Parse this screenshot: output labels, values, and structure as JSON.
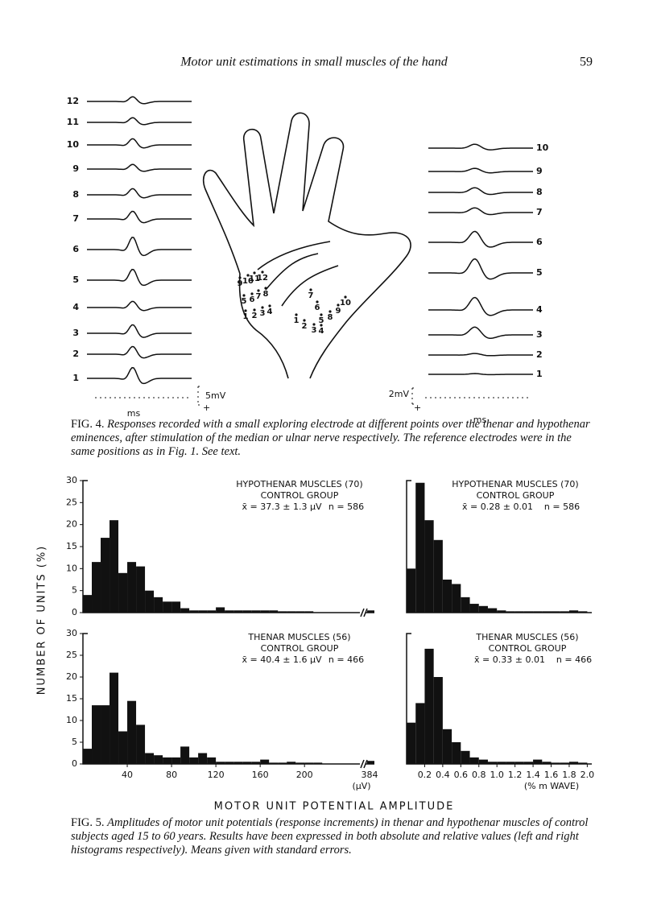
{
  "header": {
    "title": "Motor unit estimations in small muscles of the hand",
    "page": "59"
  },
  "fig4": {
    "left_trace_labels": [
      "1",
      "2",
      "3",
      "4",
      "5",
      "6",
      "7",
      "8",
      "9",
      "10",
      "11",
      "12"
    ],
    "right_trace_labels": [
      "1",
      "2",
      "3",
      "4",
      "5",
      "6",
      "7",
      "8",
      "9",
      "10"
    ],
    "hand_points_left": [
      "1",
      "2",
      "3",
      "4",
      "5",
      "6",
      "7",
      "8",
      "9",
      "10",
      "11",
      "12"
    ],
    "hand_points_right": [
      "1",
      "2",
      "3",
      "4",
      "5",
      "6",
      "7",
      "8",
      "9",
      "10"
    ],
    "scale_left": {
      "amplitude": "5mV",
      "time": "ms",
      "polarity": "+"
    },
    "scale_right": {
      "amplitude": "2mV",
      "time": "ms",
      "polarity": "+"
    },
    "caption": {
      "label": "FIG. 4.",
      "text": "Responses recorded with a small exploring electrode at different points over the thenar and hypothenar eminences, after stimulation of the median or ulnar nerve respectively. The reference electrodes were in the same positions as in Fig. 1. See text."
    }
  },
  "fig5": {
    "y_label": "NUMBER OF UNITS (%)",
    "x_label": "MOTOR UNIT POTENTIAL AMPLITUDE",
    "caption": {
      "label": "FIG. 5.",
      "text": "Amplitudes of motor unit potentials (response increments) in thenar and hypothenar muscles of control subjects aged 15 to 60 years. Results have been expressed in both absolute and relative values (left and right histograms respectively). Means given with standard errors."
    }
  },
  "chart_data": [
    {
      "type": "histogram",
      "color": "#111111",
      "annotations": [
        "HYPOTHENAR MUSCLES (70)",
        "CONTROL GROUP",
        "x̄ = 37.3 ± 1.3 µV",
        "n = 586"
      ],
      "bins": [
        0,
        8,
        16,
        24,
        32,
        40,
        48,
        56,
        64,
        72,
        80,
        88,
        96,
        104,
        112,
        120,
        128,
        136,
        144,
        152,
        160,
        168,
        176,
        184,
        192,
        200,
        208,
        216
      ],
      "values": [
        4,
        11.5,
        17,
        21,
        9,
        11.5,
        10.5,
        5,
        3.5,
        2.5,
        2.5,
        1,
        0.5,
        0.5,
        0.5,
        1.2,
        0.5,
        0.5,
        0.5,
        0.5,
        0.5,
        0.5,
        0.3,
        0.3,
        0.3,
        0.3,
        0
      ],
      "xlim": [
        0,
        250
      ],
      "ylim": [
        0,
        30
      ],
      "yticks": [
        0,
        5,
        10,
        15,
        20,
        25,
        30
      ],
      "break_value": 0.5
    },
    {
      "type": "histogram",
      "color": "#111111",
      "annotations": [
        "HYPOTHENAR MUSCLES (70)",
        "CONTROL GROUP",
        "x̄ = 0.28 ± 0.01",
        "n = 586"
      ],
      "bins": [
        0,
        0.1,
        0.2,
        0.3,
        0.4,
        0.5,
        0.6,
        0.7,
        0.8,
        0.9,
        1,
        1.1,
        1.2,
        1.3,
        1.4,
        1.5,
        1.6,
        1.7,
        1.8,
        1.9,
        2
      ],
      "values": [
        10,
        29.5,
        21,
        16.5,
        7.5,
        6.5,
        3.5,
        2,
        1.5,
        1,
        0.5,
        0.3,
        0.3,
        0.3,
        0.3,
        0.3,
        0.3,
        0.3,
        0.5,
        0.3
      ],
      "xlim": [
        0,
        2.05
      ],
      "ylim": [
        0,
        30
      ]
    },
    {
      "type": "histogram",
      "color": "#111111",
      "annotations": [
        "THENAR MUSCLES (56)",
        "CONTROL GROUP",
        "x̄ = 40.4 ± 1.6 µV",
        "n = 466"
      ],
      "bins": [
        0,
        8,
        16,
        24,
        32,
        40,
        48,
        56,
        64,
        72,
        80,
        88,
        96,
        104,
        112,
        120,
        128,
        136,
        144,
        152,
        160,
        168,
        176,
        184,
        192,
        200,
        208,
        216
      ],
      "values": [
        3.5,
        13.5,
        13.5,
        21,
        7.5,
        14.5,
        9,
        2.5,
        2,
        1.5,
        1.5,
        4,
        1.5,
        2.5,
        1.5,
        0.5,
        0.5,
        0.5,
        0.5,
        0.5,
        1,
        0.3,
        0.3,
        0.5,
        0.3,
        0.3,
        0.3
      ],
      "xlim": [
        0,
        250
      ],
      "ylim": [
        0,
        30
      ],
      "yticks": [
        0,
        5,
        10,
        15,
        20,
        25,
        30
      ],
      "xticks": [
        40,
        80,
        120,
        160,
        200
      ],
      "break_value": 0.7,
      "break_label": "384",
      "unit_label": "(µV)"
    },
    {
      "type": "histogram",
      "color": "#111111",
      "annotations": [
        "THENAR MUSCLES (56)",
        "CONTROL GROUP",
        "x̄ = 0.33 ± 0.01",
        "n = 466"
      ],
      "bins": [
        0,
        0.1,
        0.2,
        0.3,
        0.4,
        0.5,
        0.6,
        0.7,
        0.8,
        0.9,
        1,
        1.1,
        1.2,
        1.3,
        1.4,
        1.5,
        1.6,
        1.7,
        1.8,
        1.9,
        2
      ],
      "values": [
        9.5,
        14,
        26.5,
        20,
        8,
        5,
        3,
        1.5,
        1,
        0.5,
        0.5,
        0.5,
        0.5,
        0.5,
        1,
        0.5,
        0.3,
        0.3,
        0.5,
        0.3
      ],
      "xlim": [
        0,
        2.05
      ],
      "ylim": [
        0,
        30
      ],
      "xticks": [
        0.2,
        0.4,
        0.6,
        0.8,
        {
          "value": 1,
          "label": "1.0"
        },
        1.2,
        1.4,
        1.6,
        1.8,
        {
          "value": 2,
          "label": "2.0"
        }
      ],
      "unit_label": "(% m WAVE)"
    }
  ]
}
